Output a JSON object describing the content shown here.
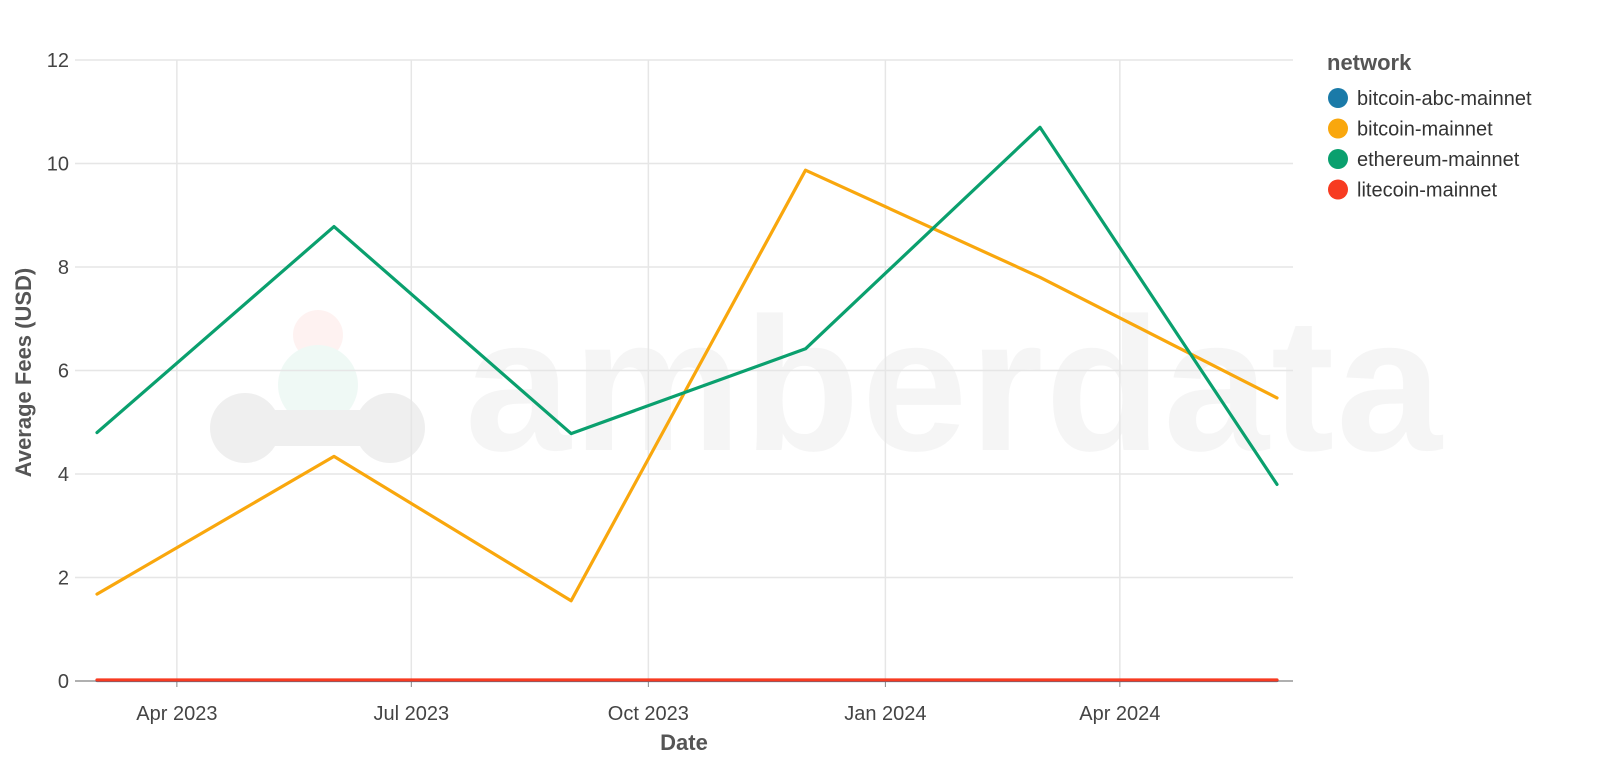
{
  "chart_data": {
    "type": "line",
    "xlabel": "Date",
    "ylabel": "Average Fees (USD)",
    "ylim": [
      0,
      12
    ],
    "yticks": [
      0,
      2,
      4,
      6,
      8,
      10,
      12
    ],
    "x_range": [
      "2023-03-01",
      "2024-06-01"
    ],
    "x_ticks": [
      {
        "date": "2023-04-01",
        "label": "Apr 2023"
      },
      {
        "date": "2023-07-01",
        "label": "Jul 2023"
      },
      {
        "date": "2023-10-01",
        "label": "Oct 2023"
      },
      {
        "date": "2024-01-01",
        "label": "Jan 2024"
      },
      {
        "date": "2024-04-01",
        "label": "Apr 2024"
      }
    ],
    "x": [
      "2023-03-01",
      "2023-06-01",
      "2023-09-01",
      "2023-12-01",
      "2024-03-01",
      "2024-06-01"
    ],
    "grid": true,
    "legend": {
      "title": "network",
      "position": "right"
    },
    "series": [
      {
        "name": "bitcoin-abc-mainnet",
        "color": "#1a7aa8",
        "values": [
          0.01,
          0.01,
          0.01,
          0.01,
          0.01,
          0.01
        ]
      },
      {
        "name": "bitcoin-mainnet",
        "color": "#f9a70d",
        "values": [
          1.68,
          4.34,
          1.55,
          9.87,
          7.8,
          5.47
        ]
      },
      {
        "name": "ethereum-mainnet",
        "color": "#0aa06e",
        "values": [
          4.8,
          8.78,
          4.78,
          6.42,
          10.7,
          3.8
        ]
      },
      {
        "name": "litecoin-mainnet",
        "color": "#f73b21",
        "values": [
          0.02,
          0.02,
          0.02,
          0.02,
          0.02,
          0.02
        ]
      }
    ]
  },
  "watermark": {
    "text": "amberdata"
  }
}
